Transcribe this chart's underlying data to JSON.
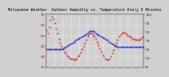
{
  "title": "Milwaukee Weather  Outdoor Humidity vs. Temperature Every 5 Minutes",
  "temp_color": "#cc0000",
  "humidity_color": "#0000cc",
  "background_color": "#d0d0d0",
  "plot_bg": "#d0d0d0",
  "grid_color": "#ffffff",
  "temp_values": [
    55,
    52,
    58,
    65,
    68,
    66,
    62,
    57,
    52,
    47,
    43,
    40,
    37,
    35,
    33,
    31,
    30,
    29,
    28,
    28,
    27,
    27,
    28,
    30,
    32,
    34,
    37,
    40,
    43,
    46,
    49,
    51,
    52,
    52,
    51,
    49,
    47,
    44,
    41,
    38,
    35,
    32,
    30,
    28,
    27,
    27,
    28,
    30,
    33,
    36,
    40,
    43,
    46,
    49,
    51,
    52,
    53,
    53,
    52,
    51,
    50,
    49,
    48,
    47,
    47,
    46,
    46,
    46,
    46,
    47,
    48,
    49
  ],
  "humidity_values": [
    60,
    60,
    60,
    60,
    60,
    60,
    60,
    60,
    60,
    60,
    60,
    60,
    61,
    62,
    63,
    64,
    65,
    66,
    67,
    68,
    69,
    70,
    71,
    72,
    73,
    74,
    75,
    76,
    77,
    78,
    79,
    80,
    81,
    81,
    81,
    80,
    79,
    78,
    77,
    76,
    75,
    74,
    73,
    72,
    71,
    70,
    69,
    68,
    67,
    66,
    65,
    64,
    63,
    63,
    63,
    63,
    63,
    63,
    63,
    63,
    63,
    63,
    63,
    63,
    63,
    63,
    63,
    63,
    63,
    63,
    63,
    63
  ],
  "n_points": 72,
  "temp_ylim": [
    20,
    70
  ],
  "humidity_ylim": [
    40,
    100
  ],
  "temp_yticks": [
    20,
    30,
    40,
    50,
    60,
    70
  ],
  "humidity_yticks": [
    40,
    50,
    60,
    70,
    80,
    90,
    100
  ],
  "tick_fontsize": 3.2,
  "title_fontsize": 3.5,
  "marker_size": 0.8,
  "linewidth": 0.0
}
